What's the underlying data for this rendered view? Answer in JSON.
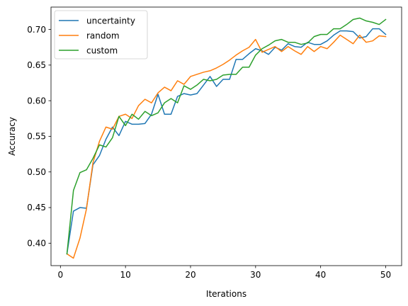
{
  "chart_data": {
    "type": "line",
    "title": "",
    "xlabel": "Iterations",
    "ylabel": "Accuracy",
    "xlim": [
      -1.45,
      52.45
    ],
    "ylim": [
      0.3685,
      0.7314
    ],
    "xticks": [
      0,
      10,
      20,
      30,
      40,
      50
    ],
    "xtick_labels": [
      "0",
      "10",
      "20",
      "30",
      "40",
      "50"
    ],
    "yticks": [
      0.4,
      0.45,
      0.5,
      0.55,
      0.6,
      0.65,
      0.7
    ],
    "ytick_labels": [
      "0.40",
      "0.45",
      "0.50",
      "0.55",
      "0.60",
      "0.65",
      "0.70"
    ],
    "grid": false,
    "legend_position": "upper-left",
    "x": [
      1,
      2,
      3,
      4,
      5,
      6,
      7,
      8,
      9,
      10,
      11,
      12,
      13,
      14,
      15,
      16,
      17,
      18,
      19,
      20,
      21,
      22,
      23,
      24,
      25,
      26,
      27,
      28,
      29,
      30,
      31,
      32,
      33,
      34,
      35,
      36,
      37,
      38,
      39,
      40,
      41,
      42,
      43,
      44,
      45,
      46,
      47,
      48,
      49,
      50
    ],
    "series": [
      {
        "name": "uncertainty",
        "color": "#1f77b4",
        "values": [
          0.385,
          0.445,
          0.45,
          0.449,
          0.51,
          0.523,
          0.546,
          0.563,
          0.551,
          0.571,
          0.567,
          0.567,
          0.568,
          0.581,
          0.609,
          0.581,
          0.581,
          0.606,
          0.61,
          0.608,
          0.61,
          0.622,
          0.634,
          0.62,
          0.63,
          0.63,
          0.658,
          0.658,
          0.666,
          0.673,
          0.67,
          0.665,
          0.675,
          0.671,
          0.68,
          0.676,
          0.675,
          0.682,
          0.679,
          0.679,
          0.684,
          0.692,
          0.698,
          0.698,
          0.697,
          0.688,
          0.69,
          0.701,
          0.701,
          0.693
        ]
      },
      {
        "name": "random",
        "color": "#ff7f0e",
        "values": [
          0.385,
          0.379,
          0.407,
          0.448,
          0.513,
          0.543,
          0.563,
          0.56,
          0.578,
          0.581,
          0.575,
          0.593,
          0.602,
          0.597,
          0.611,
          0.619,
          0.614,
          0.628,
          0.623,
          0.634,
          0.637,
          0.64,
          0.642,
          0.646,
          0.651,
          0.657,
          0.664,
          0.67,
          0.675,
          0.686,
          0.668,
          0.672,
          0.676,
          0.669,
          0.676,
          0.67,
          0.665,
          0.676,
          0.669,
          0.676,
          0.673,
          0.682,
          0.692,
          0.686,
          0.68,
          0.692,
          0.682,
          0.684,
          0.691,
          0.69
        ]
      },
      {
        "name": "custom",
        "color": "#2ca02c",
        "values": [
          0.385,
          0.474,
          0.499,
          0.503,
          0.519,
          0.538,
          0.535,
          0.548,
          0.578,
          0.565,
          0.581,
          0.574,
          0.585,
          0.579,
          0.583,
          0.597,
          0.603,
          0.597,
          0.621,
          0.616,
          0.622,
          0.63,
          0.628,
          0.63,
          0.636,
          0.637,
          0.637,
          0.647,
          0.647,
          0.664,
          0.673,
          0.678,
          0.684,
          0.686,
          0.682,
          0.682,
          0.679,
          0.681,
          0.69,
          0.693,
          0.693,
          0.701,
          0.701,
          0.707,
          0.714,
          0.716,
          0.712,
          0.71,
          0.707,
          0.714
        ]
      }
    ]
  }
}
